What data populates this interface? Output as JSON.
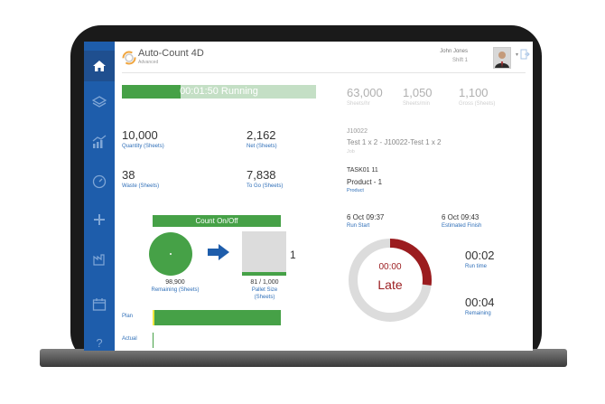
{
  "app": {
    "title": "Auto-Count 4D",
    "subtitle": "Advanced"
  },
  "user": {
    "name": "John Jones",
    "shift": "Shift 1"
  },
  "run_status": {
    "text": "00:01:50 Running",
    "progress": 0.3
  },
  "rates": [
    {
      "value": "63,000",
      "label": "Sheets/hr"
    },
    {
      "value": "1,050",
      "label": "Sheets/min"
    },
    {
      "value": "1,100",
      "label": "Gross (Sheets)"
    }
  ],
  "counts": {
    "quantity": {
      "value": "10,000",
      "label": "Quantity (Sheets)"
    },
    "net": {
      "value": "2,162",
      "label": "Net (Sheets)"
    },
    "waste": {
      "value": "38",
      "label": "Waste (Sheets)"
    },
    "to_go": {
      "value": "7,838",
      "label": "To Go (Sheets)"
    }
  },
  "job": {
    "number": "J10022",
    "description": "Test 1 x 2 - J10022-Test 1 x 2",
    "label": "Job"
  },
  "task": {
    "code": "TASK01 11",
    "product": "Product - 1",
    "product_label": "Product"
  },
  "count_on_off": {
    "header": "Count On/Off",
    "remaining_value": "98,900",
    "remaining_label": "Remaining (Sheets)",
    "pallet_value": "81 / 1,000",
    "pallet_label_1": "Pallet Size",
    "pallet_label_2": "(Sheets)",
    "pallet_count": "1",
    "pallet_fill": 0.081
  },
  "plan": {
    "plan_label": "Plan",
    "actual_label": "Actual"
  },
  "schedule": {
    "run_start_value": "6 Oct 09:37",
    "run_start_label": "Run Start",
    "est_finish_value": "6 Oct 09:43",
    "est_finish_label": "Estimated Finish"
  },
  "gauge": {
    "time": "00:00",
    "status": "Late",
    "fraction": 0.27,
    "track_color": "#dcdcdc",
    "fill_color": "#9b1c1f"
  },
  "timers": {
    "run_time_value": "00:02",
    "run_time_label": "Run time",
    "remaining_value": "00:04",
    "remaining_label": "Remaining"
  },
  "colors": {
    "sidebar": "#1e5dab",
    "accent_green": "#46a147",
    "label_blue": "#2f6fb8"
  }
}
